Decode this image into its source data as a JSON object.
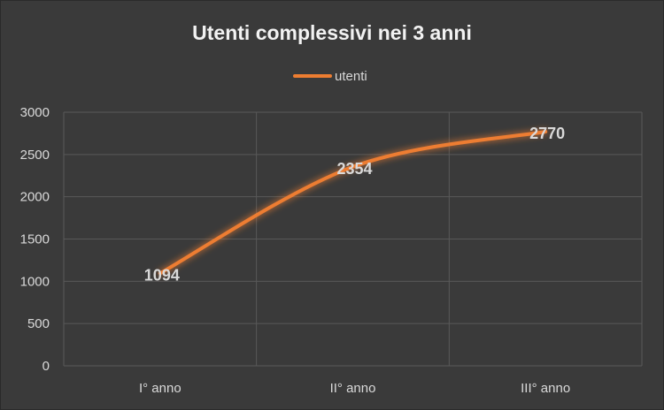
{
  "colors": {
    "background": "#3a3a3a",
    "series": "#ed7d31",
    "grid": "#595959",
    "text": "#d9d9d9",
    "title": "#f2f2f2",
    "data_label": "#d9d9d9"
  },
  "chart_data": {
    "type": "line",
    "title": "Utenti complessivi nei 3 anni",
    "xlabel": "",
    "ylabel": "",
    "categories": [
      "I° anno",
      "II° anno",
      "III° anno"
    ],
    "series": [
      {
        "name": "utenti",
        "values": [
          1094,
          2354,
          2770
        ],
        "color": "#ed7d31"
      }
    ],
    "ylim": [
      0,
      3000
    ],
    "yticks": [
      0,
      500,
      1000,
      1500,
      2000,
      2500,
      3000
    ],
    "grid": true,
    "legend_position": "top",
    "smooth": true,
    "data_labels": true
  }
}
